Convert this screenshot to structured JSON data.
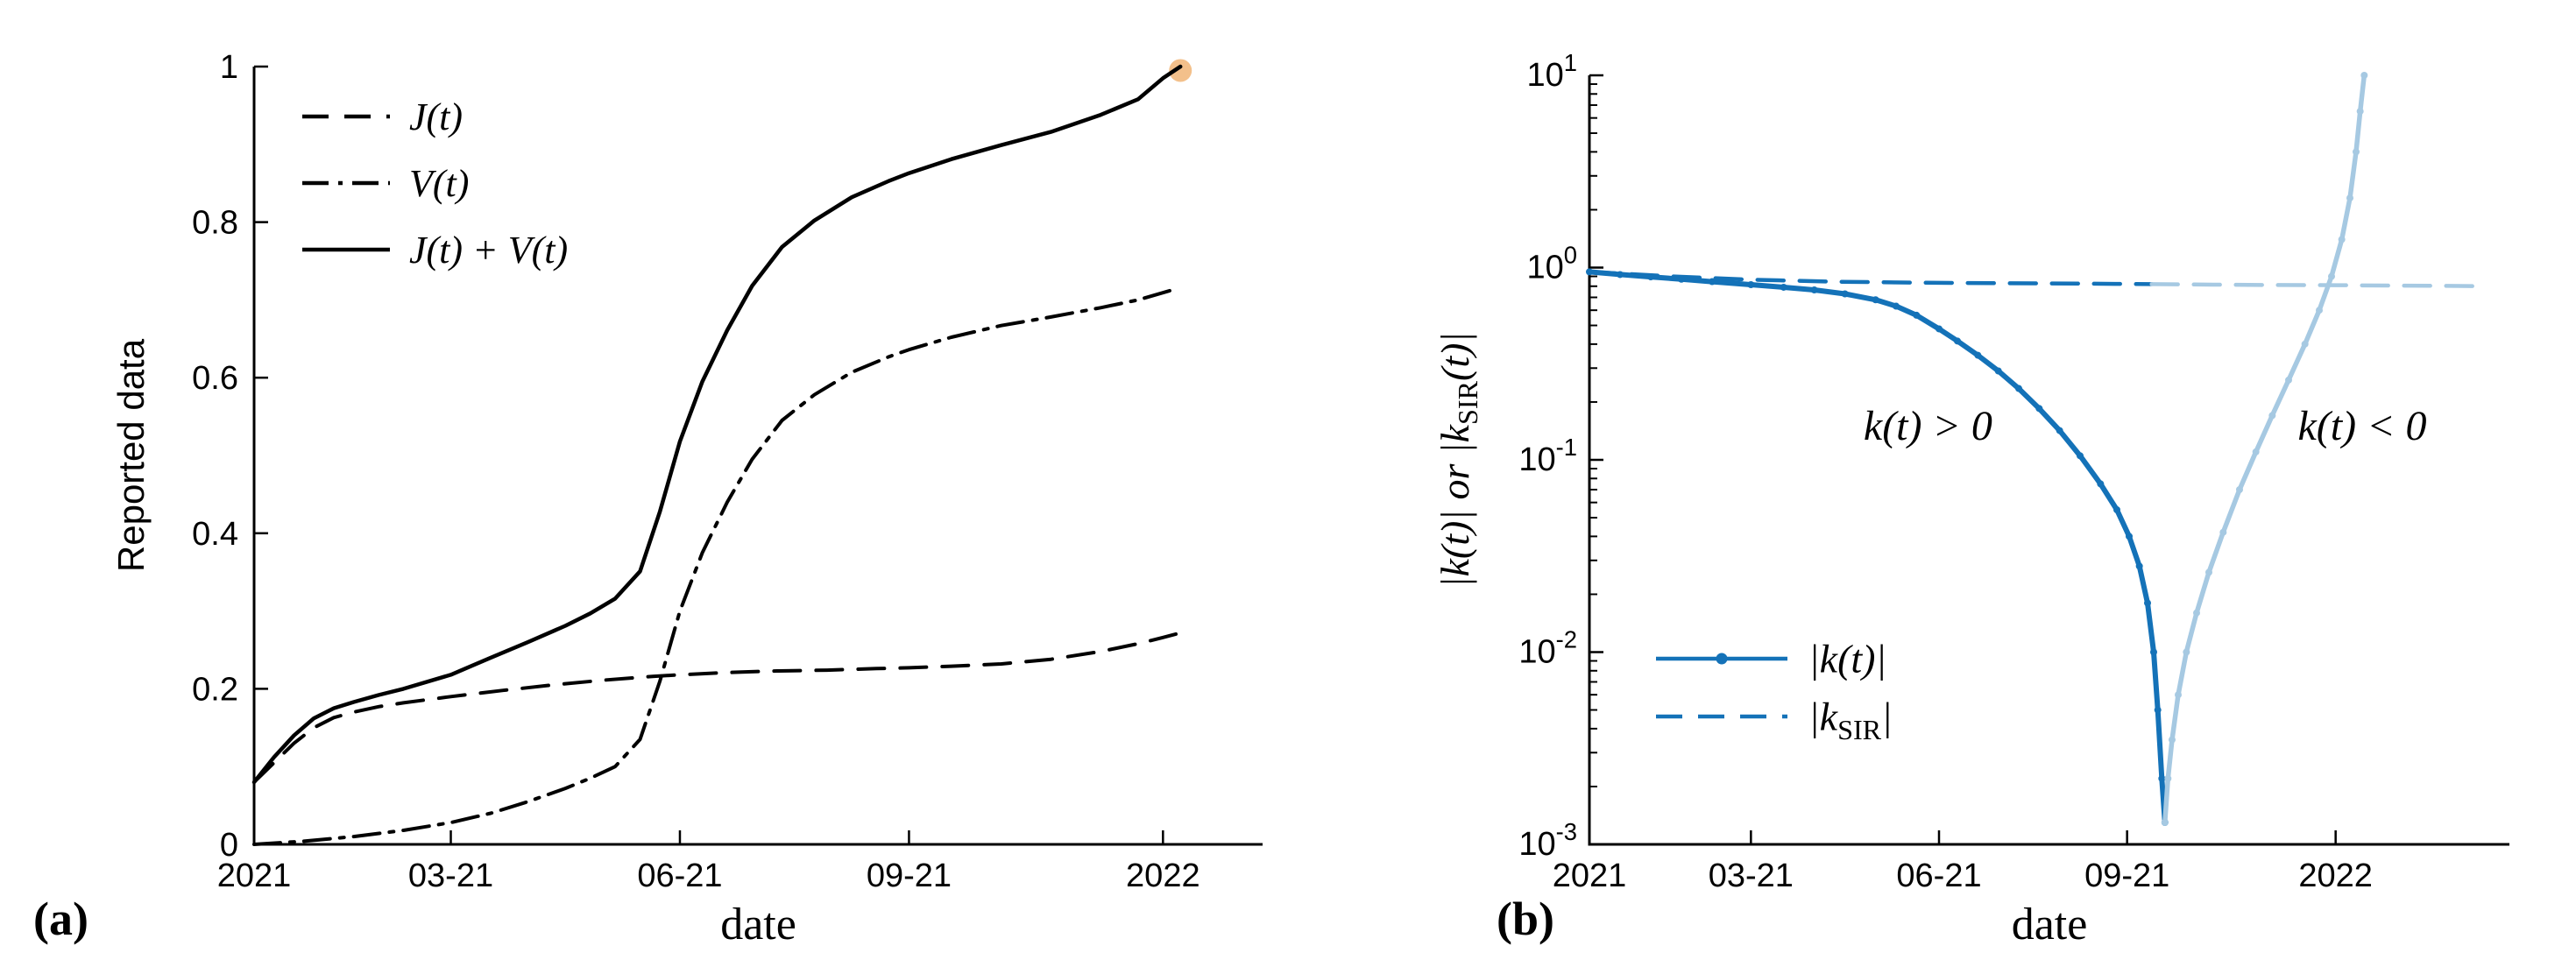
{
  "figure": {
    "panel_a_label": "(a)",
    "panel_b_label": "(b)",
    "background": "#ffffff"
  },
  "colors": {
    "axis": "#000000",
    "black_series": "#000000",
    "blue_dark": "#1472b8",
    "blue_light": "#a6c9e2",
    "tan_marker": "#f3c08b"
  },
  "chart_data": [
    {
      "id": "a",
      "type": "line",
      "title": "",
      "xlabel": "date",
      "ylabel": "Reported data",
      "xscale": "linear",
      "yscale": "linear",
      "xlim": [
        0,
        405
      ],
      "ylim": [
        0,
        1
      ],
      "xticks": {
        "values": [
          0,
          79,
          171,
          263,
          365
        ],
        "labels": [
          "2021",
          "03-21",
          "06-21",
          "09-21",
          "2022"
        ]
      },
      "yticks": {
        "values": [
          0,
          0.2,
          0.4,
          0.6,
          0.8,
          1
        ],
        "labels": [
          "0",
          "0.2",
          "0.4",
          "0.6",
          "0.8",
          "1"
        ]
      },
      "grid": false,
      "legend_position": "top-left",
      "series": [
        {
          "name": "J(t)",
          "style": "dashed",
          "color": "#000000",
          "width": 4,
          "x": [
            0,
            8,
            16,
            24,
            32,
            40,
            50,
            60,
            79,
            100,
            120,
            140,
            160,
            171,
            190,
            210,
            230,
            250,
            263,
            280,
            300,
            320,
            340,
            355,
            365,
            372
          ],
          "y": [
            0.08,
            0.105,
            0.13,
            0.15,
            0.163,
            0.17,
            0.177,
            0.182,
            0.19,
            0.198,
            0.205,
            0.211,
            0.216,
            0.218,
            0.221,
            0.223,
            0.224,
            0.226,
            0.227,
            0.229,
            0.232,
            0.238,
            0.248,
            0.258,
            0.266,
            0.272
          ]
        },
        {
          "name": "V(t)",
          "style": "dashdot",
          "color": "#000000",
          "width": 4,
          "x": [
            0,
            20,
            40,
            60,
            79,
            95,
            110,
            125,
            135,
            145,
            155,
            163,
            171,
            180,
            190,
            200,
            212,
            225,
            240,
            255,
            263,
            280,
            300,
            320,
            340,
            355,
            370
          ],
          "y": [
            0,
            0.004,
            0.01,
            0.018,
            0.028,
            0.04,
            0.055,
            0.072,
            0.085,
            0.1,
            0.135,
            0.21,
            0.3,
            0.375,
            0.44,
            0.495,
            0.545,
            0.578,
            0.607,
            0.627,
            0.636,
            0.652,
            0.667,
            0.678,
            0.69,
            0.7,
            0.714
          ]
        },
        {
          "name": "J(t) + V(t)",
          "style": "solid",
          "color": "#000000",
          "width": 4.5,
          "x": [
            0,
            8,
            16,
            24,
            32,
            40,
            50,
            60,
            79,
            95,
            110,
            125,
            135,
            145,
            155,
            163,
            171,
            180,
            190,
            200,
            212,
            225,
            240,
            255,
            263,
            280,
            300,
            320,
            340,
            355,
            365,
            372
          ],
          "y": [
            0.08,
            0.112,
            0.14,
            0.162,
            0.175,
            0.183,
            0.192,
            0.2,
            0.218,
            0.24,
            0.26,
            0.281,
            0.297,
            0.316,
            0.351,
            0.428,
            0.518,
            0.595,
            0.661,
            0.718,
            0.768,
            0.802,
            0.832,
            0.853,
            0.863,
            0.881,
            0.899,
            0.916,
            0.938,
            0.958,
            0.985,
            1.0
          ]
        }
      ],
      "point_marker": {
        "x": 372,
        "y": 0.995,
        "radius": 13,
        "color": "#f3c08b"
      },
      "legend": {
        "items": [
          {
            "label": "J(t)",
            "style": "dashed"
          },
          {
            "label": "V(t)",
            "style": "dashdot"
          },
          {
            "label": "J(t) + V(t)",
            "style": "solid"
          }
        ]
      },
      "annotations": []
    },
    {
      "id": "b",
      "type": "line",
      "title": "",
      "xlabel": "date",
      "ylabel_parts": {
        "pre": "|k(t)| or |k",
        "sub": "SIR",
        "post": "(t)|"
      },
      "xscale": "linear",
      "yscale": "log",
      "xlim": [
        0,
        450
      ],
      "ylim": [
        0.001,
        10
      ],
      "xticks": {
        "values": [
          0,
          79,
          171,
          263,
          365
        ],
        "labels": [
          "2021",
          "03-21",
          "06-21",
          "09-21",
          "2022"
        ]
      },
      "yticks": {
        "exponents": [
          1,
          0,
          -1,
          -2,
          -3
        ]
      },
      "grid": false,
      "legend_position": "bottom-left",
      "series": [
        {
          "name": "|k_SIR| (k>0)",
          "style": "dashed",
          "color": "#1472b8",
          "width": 4.5,
          "markers": false,
          "x": [
            0,
            40,
            79,
            120,
            160,
            200,
            240,
            275
          ],
          "y": [
            0.95,
            0.9,
            0.865,
            0.845,
            0.835,
            0.83,
            0.825,
            0.82
          ]
        },
        {
          "name": "|k_SIR| (k<0)",
          "style": "dashed",
          "color": "#a6c9e2",
          "width": 4.5,
          "markers": false,
          "x": [
            275,
            305,
            335,
            365,
            395,
            420,
            437
          ],
          "y": [
            0.82,
            0.815,
            0.812,
            0.81,
            0.806,
            0.803,
            0.8
          ]
        },
        {
          "name": "|k(t)| (k>0)",
          "style": "solid",
          "color": "#1472b8",
          "width": 6,
          "markers": true,
          "x": [
            0,
            15,
            30,
            45,
            60,
            79,
            95,
            110,
            125,
            140,
            150,
            160,
            171,
            180,
            190,
            200,
            210,
            220,
            230,
            240,
            250,
            258,
            264,
            269,
            273,
            276,
            278,
            280,
            281.5
          ],
          "y": [
            0.95,
            0.92,
            0.895,
            0.87,
            0.845,
            0.815,
            0.79,
            0.765,
            0.73,
            0.68,
            0.63,
            0.565,
            0.48,
            0.415,
            0.35,
            0.29,
            0.235,
            0.185,
            0.142,
            0.105,
            0.075,
            0.055,
            0.04,
            0.028,
            0.018,
            0.01,
            0.005,
            0.0022,
            0.0013
          ]
        },
        {
          "name": "|k(t)| (k<0)",
          "style": "solid",
          "color": "#a6c9e2",
          "width": 5.5,
          "markers": true,
          "x": [
            281.5,
            283,
            285,
            288,
            292,
            297,
            303,
            310,
            318,
            326,
            334,
            342,
            350,
            357,
            363,
            368,
            372,
            375,
            377,
            379
          ],
          "y": [
            0.0013,
            0.0022,
            0.0035,
            0.006,
            0.01,
            0.016,
            0.026,
            0.042,
            0.07,
            0.11,
            0.17,
            0.26,
            0.4,
            0.6,
            0.9,
            1.4,
            2.3,
            4.0,
            6.5,
            10
          ]
        }
      ],
      "legend": {
        "items": [
          {
            "pre": "|k(t)|",
            "sub": "",
            "post": "",
            "style": "solid-dot",
            "color": "#1472b8"
          },
          {
            "pre": "|k",
            "sub": "SIR",
            "post": "|",
            "style": "dashed",
            "color": "#1472b8"
          }
        ]
      },
      "annotations": [
        {
          "text": "k(t) > 0",
          "fx": 0.368,
          "fy": 0.474
        },
        {
          "text": "k(t) < 0",
          "fx": 0.84,
          "fy": 0.474
        }
      ]
    }
  ]
}
